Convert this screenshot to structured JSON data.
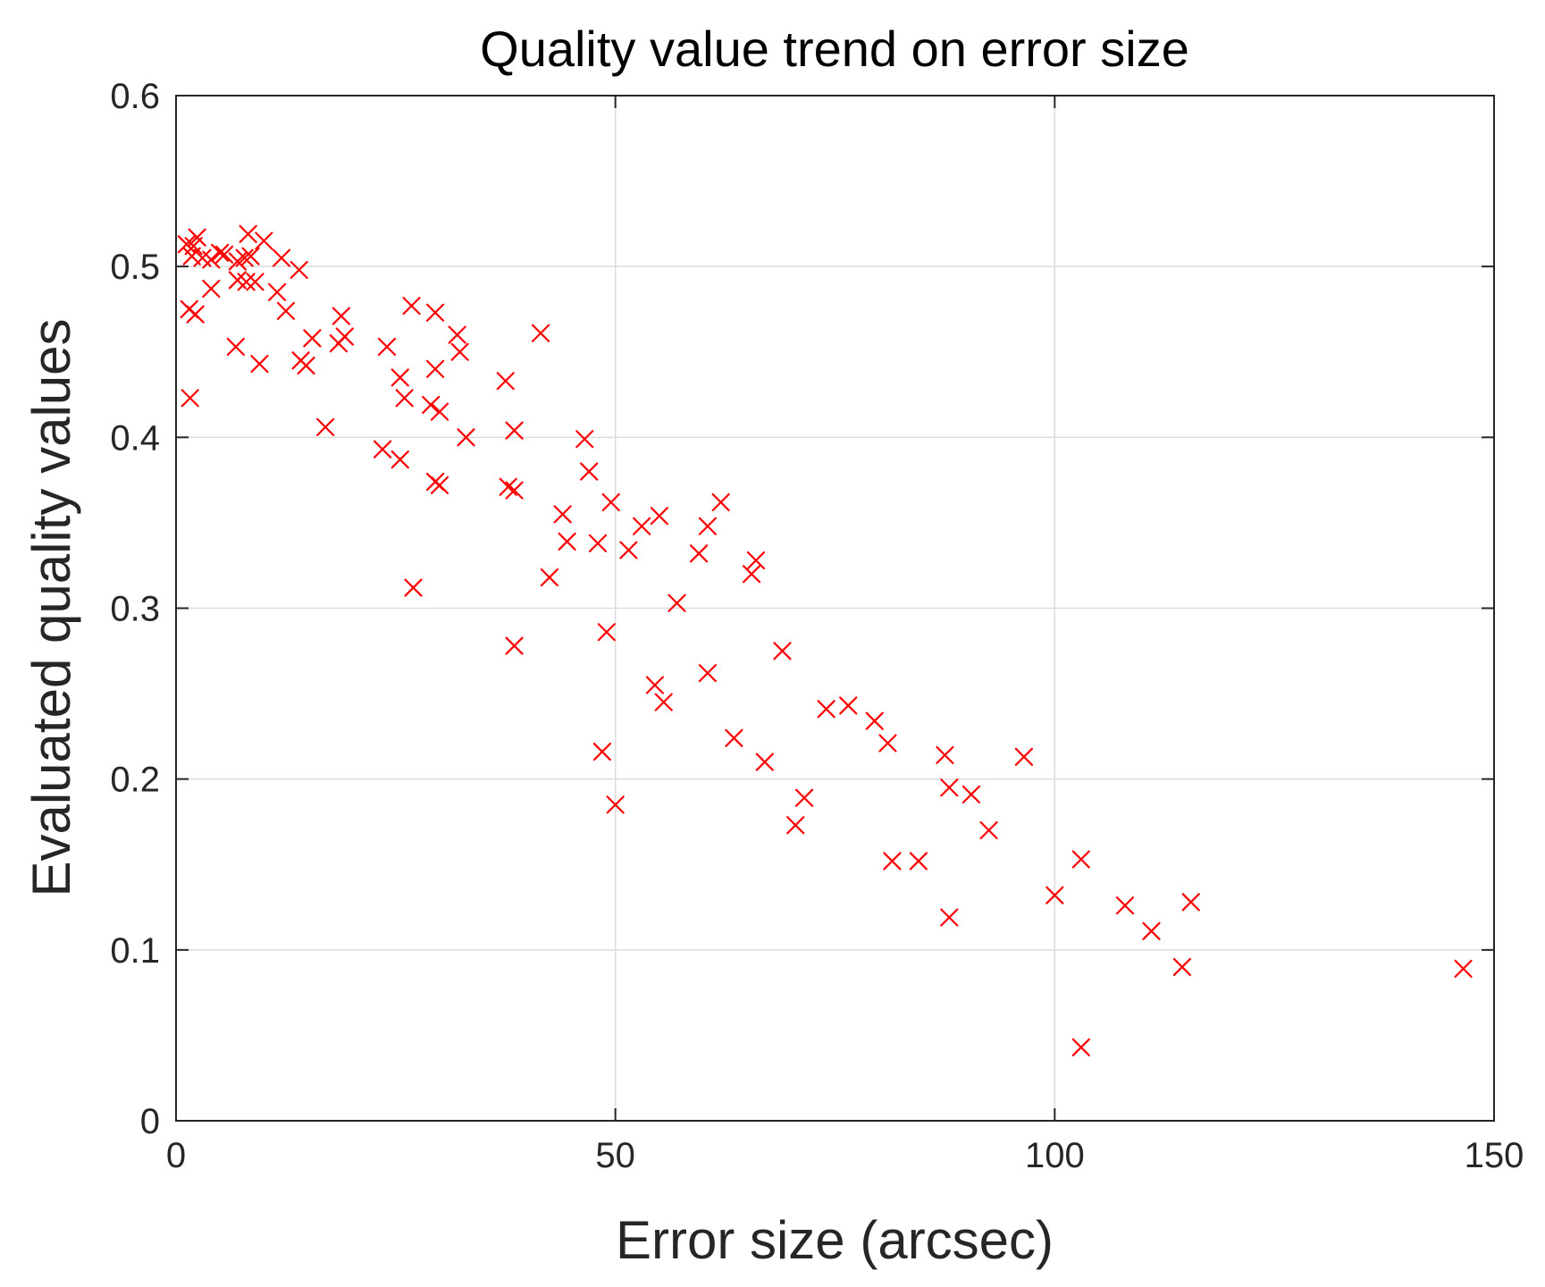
{
  "chart_data": {
    "type": "scatter",
    "title": "Quality value trend on error size",
    "xlabel": "Error size (arcsec)",
    "ylabel": "Evaluated quality values",
    "xlim": [
      0,
      150
    ],
    "ylim": [
      0,
      0.6
    ],
    "xticks": [
      0,
      50,
      100,
      150
    ],
    "xtick_labels": [
      "0",
      "50",
      "100",
      "150"
    ],
    "yticks": [
      0,
      0.1,
      0.2,
      0.3,
      0.4,
      0.5,
      0.6
    ],
    "ytick_labels": [
      "0",
      "0.1",
      "0.2",
      "0.3",
      "0.4",
      "0.5",
      "0.6"
    ],
    "grid": true,
    "marker": "x",
    "marker_color": "#ff0000",
    "series": [
      {
        "points": [
          [
            1.2,
            0.513
          ],
          [
            1.8,
            0.506
          ],
          [
            2.4,
            0.517
          ],
          [
            2.0,
            0.512
          ],
          [
            3.0,
            0.505
          ],
          [
            4.0,
            0.504
          ],
          [
            5.0,
            0.508
          ],
          [
            5.5,
            0.507
          ],
          [
            7.0,
            0.503
          ],
          [
            7.8,
            0.505
          ],
          [
            8.2,
            0.519
          ],
          [
            8.5,
            0.506
          ],
          [
            10.0,
            0.515
          ],
          [
            12.0,
            0.505
          ],
          [
            14.0,
            0.498
          ],
          [
            1.5,
            0.475
          ],
          [
            2.2,
            0.472
          ],
          [
            4.0,
            0.487
          ],
          [
            7.0,
            0.492
          ],
          [
            8.0,
            0.491
          ],
          [
            9.0,
            0.491
          ],
          [
            11.5,
            0.485
          ],
          [
            12.5,
            0.474
          ],
          [
            6.8,
            0.453
          ],
          [
            9.5,
            0.443
          ],
          [
            1.6,
            0.423
          ],
          [
            14.2,
            0.445
          ],
          [
            14.8,
            0.442
          ],
          [
            15.5,
            0.458
          ],
          [
            18.8,
            0.471
          ],
          [
            18.5,
            0.455
          ],
          [
            19.2,
            0.459
          ],
          [
            17.0,
            0.406
          ],
          [
            24.0,
            0.453
          ],
          [
            26.8,
            0.477
          ],
          [
            29.5,
            0.473
          ],
          [
            32.0,
            0.46
          ],
          [
            32.3,
            0.45
          ],
          [
            25.5,
            0.435
          ],
          [
            26.0,
            0.423
          ],
          [
            29.5,
            0.44
          ],
          [
            29.0,
            0.419
          ],
          [
            30.0,
            0.415
          ],
          [
            33.0,
            0.4
          ],
          [
            23.5,
            0.393
          ],
          [
            25.5,
            0.387
          ],
          [
            29.5,
            0.374
          ],
          [
            30.0,
            0.372
          ],
          [
            27.0,
            0.312
          ],
          [
            37.5,
            0.433
          ],
          [
            41.5,
            0.461
          ],
          [
            38.5,
            0.404
          ],
          [
            37.8,
            0.371
          ],
          [
            38.5,
            0.369
          ],
          [
            38.5,
            0.278
          ],
          [
            46.5,
            0.399
          ],
          [
            47.0,
            0.38
          ],
          [
            49.5,
            0.362
          ],
          [
            44.0,
            0.355
          ],
          [
            44.5,
            0.339
          ],
          [
            48.0,
            0.338
          ],
          [
            42.5,
            0.318
          ],
          [
            53.0,
            0.348
          ],
          [
            55.0,
            0.354
          ],
          [
            51.5,
            0.334
          ],
          [
            62.0,
            0.362
          ],
          [
            60.5,
            0.348
          ],
          [
            59.5,
            0.332
          ],
          [
            65.5,
            0.32
          ],
          [
            66.0,
            0.328
          ],
          [
            57.0,
            0.303
          ],
          [
            49.0,
            0.286
          ],
          [
            60.5,
            0.262
          ],
          [
            54.5,
            0.255
          ],
          [
            55.5,
            0.245
          ],
          [
            48.5,
            0.216
          ],
          [
            50.0,
            0.185
          ],
          [
            69.0,
            0.275
          ],
          [
            63.5,
            0.224
          ],
          [
            67.0,
            0.21
          ],
          [
            74.0,
            0.241
          ],
          [
            76.5,
            0.243
          ],
          [
            79.5,
            0.234
          ],
          [
            81.0,
            0.221
          ],
          [
            71.5,
            0.189
          ],
          [
            70.5,
            0.173
          ],
          [
            87.5,
            0.214
          ],
          [
            88.0,
            0.195
          ],
          [
            90.5,
            0.191
          ],
          [
            92.5,
            0.17
          ],
          [
            81.5,
            0.152
          ],
          [
            84.5,
            0.152
          ],
          [
            88.0,
            0.119
          ],
          [
            96.5,
            0.213
          ],
          [
            103.0,
            0.153
          ],
          [
            100.0,
            0.132
          ],
          [
            103.0,
            0.043
          ],
          [
            108.0,
            0.126
          ],
          [
            111.0,
            0.111
          ],
          [
            115.5,
            0.128
          ],
          [
            114.5,
            0.09
          ],
          [
            146.5,
            0.089
          ]
        ]
      }
    ]
  }
}
